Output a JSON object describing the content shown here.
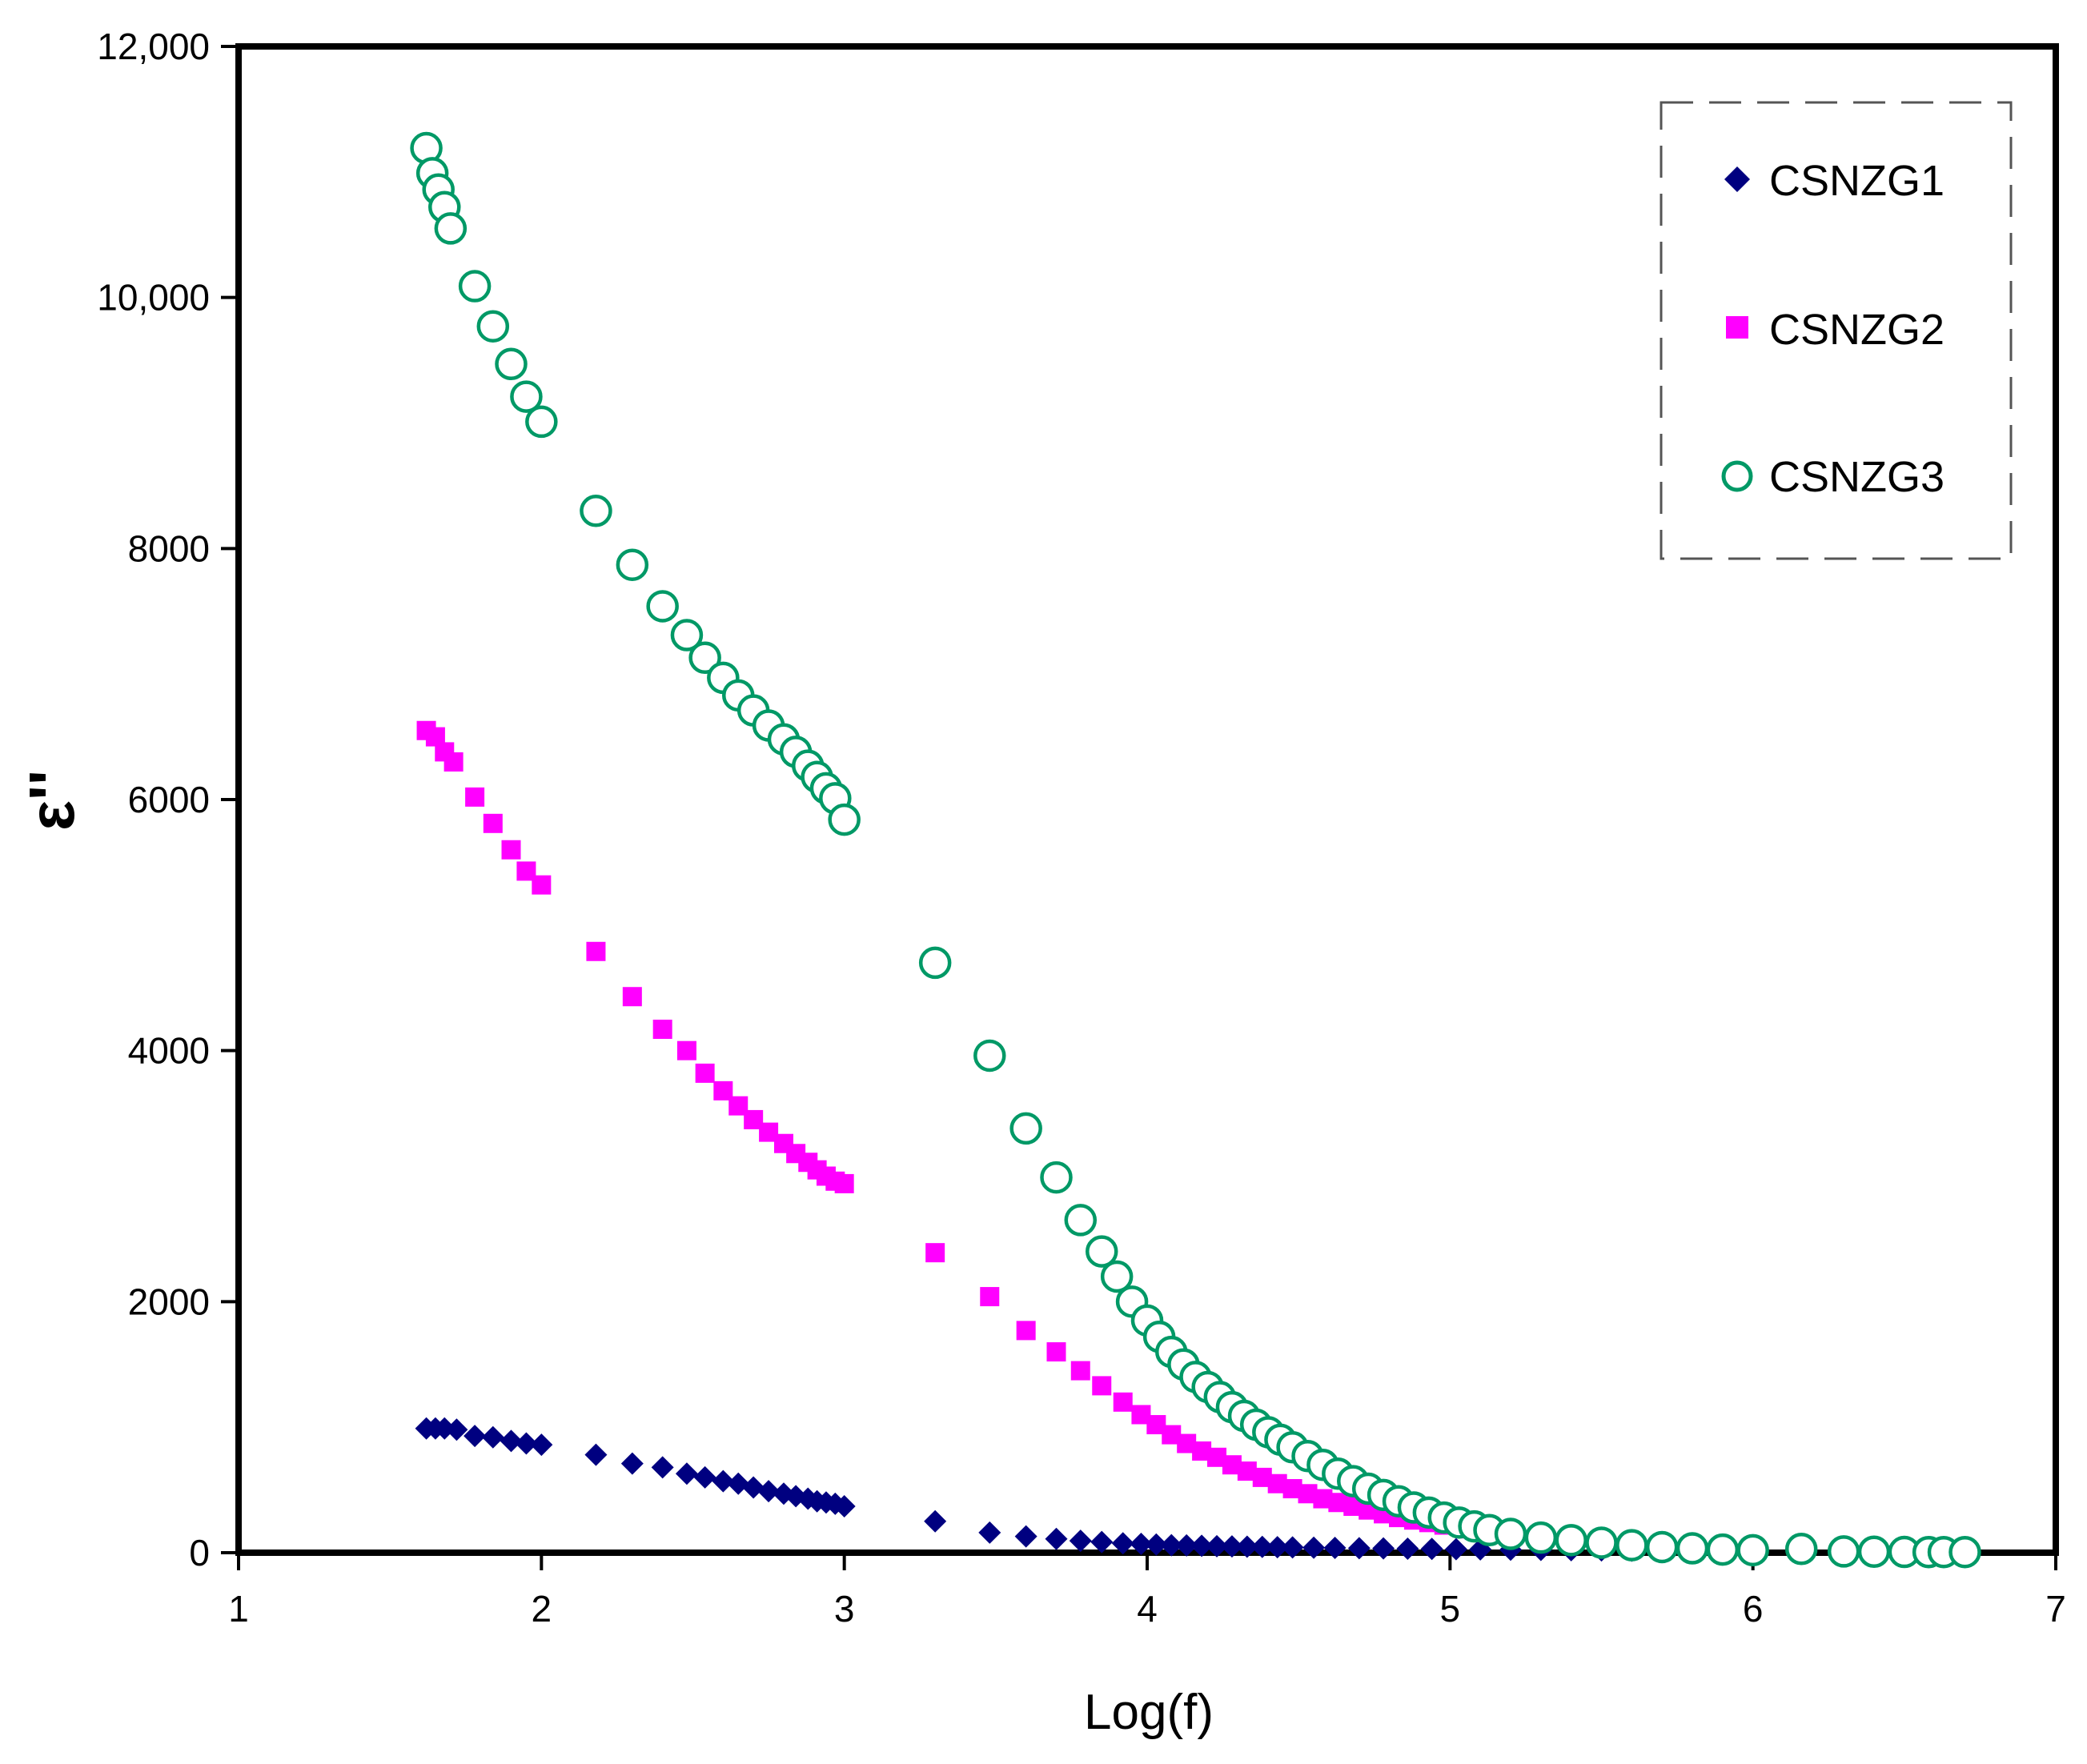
{
  "chart_data": {
    "type": "scatter",
    "title": "",
    "xlabel": "Log(f)",
    "ylabel": "ε''",
    "xlim": [
      1,
      7
    ],
    "ylim": [
      0,
      12000
    ],
    "x_ticks": [
      1,
      2,
      3,
      4,
      5,
      6,
      7
    ],
    "x_tick_labels": [
      "1",
      "2",
      "3",
      "4",
      "5",
      "6",
      "7"
    ],
    "y_ticks": [
      0,
      2000,
      4000,
      6000,
      8000,
      10000,
      12000
    ],
    "y_tick_labels": [
      "0",
      "2000",
      "4000",
      "6000",
      "8000",
      "10,000",
      "12,000"
    ],
    "grid": false,
    "legend_position": "top-right",
    "colors": {
      "CSNZG1": "#000080",
      "CSNZG2": "#ff00ff",
      "CSNZG3": "#009966",
      "axis": "#000000"
    },
    "series": [
      {
        "name": "CSNZG1",
        "marker": "diamond",
        "x": [
          1.62,
          1.65,
          1.68,
          1.72,
          1.78,
          1.84,
          1.9,
          1.95,
          2.0,
          2.18,
          2.3,
          2.4,
          2.48,
          2.54,
          2.6,
          2.65,
          2.7,
          2.75,
          2.8,
          2.84,
          2.88,
          2.91,
          2.94,
          2.97,
          3.0,
          3.3,
          3.48,
          3.6,
          3.7,
          3.78,
          3.85,
          3.92,
          3.98,
          4.03,
          4.08,
          4.13,
          4.18,
          4.23,
          4.28,
          4.33,
          4.38,
          4.43,
          4.48,
          4.55,
          4.62,
          4.7,
          4.78,
          4.86,
          4.94,
          5.02,
          5.1,
          5.2,
          5.3,
          5.4,
          5.5,
          5.6,
          5.7
        ],
        "y": [
          990,
          990,
          990,
          980,
          930,
          920,
          890,
          870,
          860,
          780,
          710,
          680,
          630,
          600,
          570,
          550,
          520,
          490,
          470,
          450,
          430,
          410,
          400,
          390,
          370,
          250,
          160,
          130,
          110,
          95,
          85,
          75,
          70,
          65,
          60,
          58,
          55,
          52,
          50,
          48,
          46,
          44,
          42,
          40,
          38,
          36,
          34,
          32,
          30,
          28,
          26,
          24,
          22,
          20,
          18,
          16,
          14
        ]
      },
      {
        "name": "CSNZG2",
        "marker": "square",
        "x": [
          1.62,
          1.65,
          1.68,
          1.71,
          1.78,
          1.84,
          1.9,
          1.95,
          2.0,
          2.18,
          2.3,
          2.4,
          2.48,
          2.54,
          2.6,
          2.65,
          2.7,
          2.75,
          2.8,
          2.84,
          2.88,
          2.91,
          2.94,
          2.97,
          3.0,
          3.3,
          3.48,
          3.6,
          3.7,
          3.78,
          3.85,
          3.92,
          3.98,
          4.03,
          4.08,
          4.13,
          4.18,
          4.23,
          4.28,
          4.33,
          4.38,
          4.43,
          4.48,
          4.53,
          4.58,
          4.63,
          4.68,
          4.73,
          4.78,
          4.83,
          4.88,
          4.93,
          4.98,
          5.05,
          5.12,
          5.2,
          5.3,
          5.4,
          5.5,
          5.6,
          5.7,
          5.8
        ],
        "y": [
          6550,
          6500,
          6380,
          6300,
          6020,
          5810,
          5600,
          5430,
          5320,
          4790,
          4430,
          4170,
          4000,
          3820,
          3680,
          3560,
          3450,
          3350,
          3260,
          3180,
          3110,
          3050,
          3000,
          2960,
          2940,
          2390,
          2040,
          1770,
          1600,
          1450,
          1330,
          1200,
          1100,
          1020,
          940,
          870,
          810,
          760,
          700,
          650,
          600,
          550,
          510,
          470,
          430,
          400,
          370,
          340,
          310,
          280,
          260,
          240,
          220,
          190,
          160,
          130,
          100,
          80,
          60,
          45,
          35,
          25
        ]
      },
      {
        "name": "CSNZG3",
        "marker": "circle-open",
        "x": [
          1.62,
          1.64,
          1.66,
          1.68,
          1.7,
          1.78,
          1.84,
          1.9,
          1.95,
          2.0,
          2.18,
          2.3,
          2.4,
          2.48,
          2.54,
          2.6,
          2.65,
          2.7,
          2.75,
          2.8,
          2.84,
          2.88,
          2.91,
          2.94,
          2.97,
          3.0,
          3.3,
          3.48,
          3.6,
          3.7,
          3.78,
          3.85,
          3.9,
          3.95,
          4.0,
          4.04,
          4.08,
          4.12,
          4.16,
          4.2,
          4.24,
          4.28,
          4.32,
          4.36,
          4.4,
          4.44,
          4.48,
          4.53,
          4.58,
          4.63,
          4.68,
          4.73,
          4.78,
          4.83,
          4.88,
          4.93,
          4.98,
          5.03,
          5.08,
          5.13,
          5.2,
          5.3,
          5.4,
          5.5,
          5.6,
          5.7,
          5.8,
          5.9,
          6.0,
          6.16,
          6.3,
          6.4,
          6.5,
          6.58,
          6.63,
          6.7
        ],
        "y": [
          11190,
          10990,
          10860,
          10720,
          10550,
          10090,
          9770,
          9470,
          9210,
          9010,
          8300,
          7870,
          7540,
          7310,
          7130,
          6970,
          6830,
          6710,
          6590,
          6480,
          6380,
          6270,
          6180,
          6090,
          6010,
          5840,
          4700,
          3960,
          3380,
          2990,
          2650,
          2400,
          2200,
          2000,
          1850,
          1720,
          1600,
          1500,
          1400,
          1320,
          1240,
          1160,
          1090,
          1020,
          960,
          900,
          840,
          770,
          700,
          630,
          570,
          510,
          460,
          410,
          360,
          320,
          280,
          240,
          210,
          180,
          150,
          120,
          100,
          80,
          60,
          45,
          35,
          25,
          20,
          30,
          10,
          8,
          6,
          5,
          5,
          5
        ]
      }
    ]
  }
}
